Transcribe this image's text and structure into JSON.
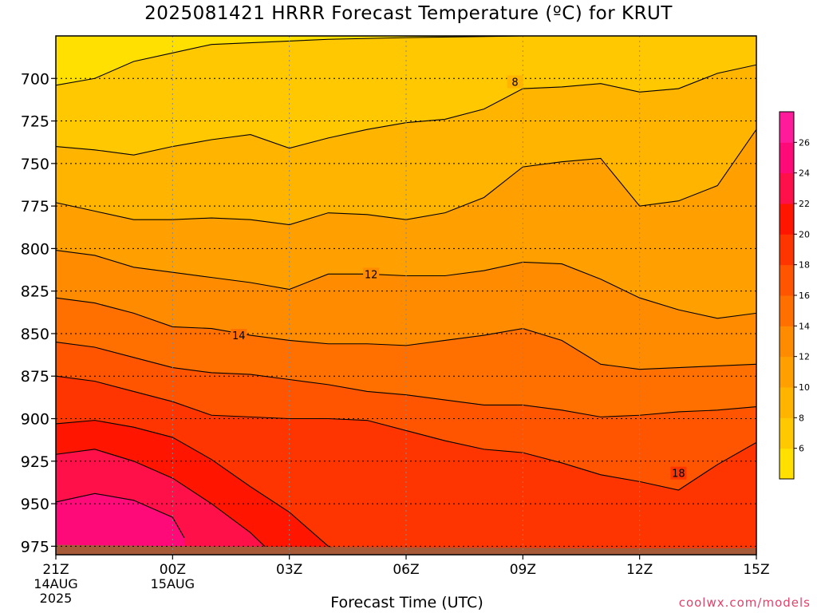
{
  "chart_data": {
    "type": "heatmap",
    "title": "2025081421 HRRR Forecast Temperature (ºC) for KRUT",
    "xlabel": "Forecast Time (UTC)",
    "ylabel": "",
    "x_ticks": [
      {
        "hour": 0,
        "label": "21Z",
        "sub": [
          "14AUG",
          "2025"
        ]
      },
      {
        "hour": 3,
        "label": "00Z",
        "sub": [
          "15AUG"
        ]
      },
      {
        "hour": 6,
        "label": "03Z",
        "sub": []
      },
      {
        "hour": 9,
        "label": "06Z",
        "sub": []
      },
      {
        "hour": 12,
        "label": "09Z",
        "sub": []
      },
      {
        "hour": 15,
        "label": "12Z",
        "sub": []
      },
      {
        "hour": 18,
        "label": "15Z",
        "sub": []
      }
    ],
    "xlim": [
      0,
      18
    ],
    "y_ticks": [
      700,
      725,
      750,
      775,
      800,
      825,
      850,
      875,
      900,
      925,
      950,
      975
    ],
    "ylim": [
      675,
      980
    ],
    "y_inverted": true,
    "colorbar": {
      "levels": [
        4,
        6,
        8,
        10,
        12,
        14,
        16,
        18,
        20,
        22,
        24,
        26,
        28
      ],
      "tick_labels": [
        6,
        8,
        10,
        12,
        14,
        16,
        18,
        20,
        22,
        24,
        26
      ],
      "colors": [
        "#ffe000",
        "#ffc800",
        "#ffb400",
        "#ffa000",
        "#ff8c00",
        "#ff7000",
        "#ff5500",
        "#ff3500",
        "#ff1500",
        "#ff1048",
        "#ff0a78",
        "#ff1c9a"
      ]
    },
    "contours": [
      {
        "level": 6,
        "label": "",
        "points": [
          [
            0,
            704
          ],
          [
            1,
            700
          ],
          [
            2,
            690
          ],
          [
            3,
            685
          ],
          [
            4,
            680
          ],
          [
            5,
            679
          ],
          [
            6,
            678
          ],
          [
            7,
            677
          ],
          [
            9,
            676
          ],
          [
            12,
            675
          ],
          [
            18,
            675
          ]
        ]
      },
      {
        "level": 8,
        "label": "8",
        "points": [
          [
            0,
            740
          ],
          [
            1,
            742
          ],
          [
            2,
            745
          ],
          [
            3,
            740
          ],
          [
            4,
            736
          ],
          [
            5,
            733
          ],
          [
            6,
            741
          ],
          [
            7,
            735
          ],
          [
            8,
            730
          ],
          [
            9,
            726
          ],
          [
            10,
            724
          ],
          [
            11,
            718
          ],
          [
            12,
            706
          ],
          [
            13,
            705
          ],
          [
            14,
            703
          ],
          [
            15,
            708
          ],
          [
            16,
            706
          ],
          [
            17,
            697
          ],
          [
            18,
            692
          ]
        ]
      },
      {
        "level": 10,
        "label": "",
        "points": [
          [
            0,
            773
          ],
          [
            1,
            778
          ],
          [
            2,
            783
          ],
          [
            3,
            783
          ],
          [
            4,
            782
          ],
          [
            5,
            783
          ],
          [
            6,
            786
          ],
          [
            7,
            779
          ],
          [
            8,
            780
          ],
          [
            9,
            783
          ],
          [
            10,
            779
          ],
          [
            11,
            770
          ],
          [
            12,
            752
          ],
          [
            13,
            749
          ],
          [
            14,
            747
          ],
          [
            15,
            775
          ],
          [
            16,
            772
          ],
          [
            17,
            763
          ],
          [
            18,
            730
          ]
        ]
      },
      {
        "level": 12,
        "label": "12",
        "points": [
          [
            0,
            801
          ],
          [
            1,
            804
          ],
          [
            2,
            811
          ],
          [
            3,
            814
          ],
          [
            4,
            817
          ],
          [
            5,
            820
          ],
          [
            6,
            824
          ],
          [
            7,
            815
          ],
          [
            8,
            815
          ],
          [
            9,
            816
          ],
          [
            10,
            816
          ],
          [
            11,
            813
          ],
          [
            12,
            808
          ],
          [
            13,
            809
          ],
          [
            14,
            818
          ],
          [
            15,
            829
          ],
          [
            16,
            836
          ],
          [
            17,
            841
          ],
          [
            18,
            838
          ]
        ]
      },
      {
        "level": 14,
        "label": "14",
        "points": [
          [
            0,
            829
          ],
          [
            1,
            832
          ],
          [
            2,
            838
          ],
          [
            3,
            846
          ],
          [
            4,
            847
          ],
          [
            5,
            851
          ],
          [
            6,
            854
          ],
          [
            7,
            856
          ],
          [
            8,
            856
          ],
          [
            9,
            857
          ],
          [
            10,
            854
          ],
          [
            11,
            851
          ],
          [
            12,
            847
          ],
          [
            13,
            854
          ],
          [
            14,
            868
          ],
          [
            15,
            871
          ],
          [
            16,
            870
          ],
          [
            17,
            869
          ],
          [
            18,
            868
          ]
        ]
      },
      {
        "level": 16,
        "label": "",
        "points": [
          [
            0,
            855
          ],
          [
            1,
            858
          ],
          [
            2,
            864
          ],
          [
            3,
            870
          ],
          [
            4,
            873
          ],
          [
            5,
            874
          ],
          [
            6,
            877
          ],
          [
            7,
            880
          ],
          [
            8,
            884
          ],
          [
            9,
            886
          ],
          [
            10,
            889
          ],
          [
            11,
            892
          ],
          [
            12,
            892
          ],
          [
            13,
            895
          ],
          [
            14,
            899
          ],
          [
            15,
            898
          ],
          [
            16,
            896
          ],
          [
            17,
            895
          ],
          [
            18,
            893
          ]
        ]
      },
      {
        "level": 18,
        "label": "18",
        "points": [
          [
            0,
            875
          ],
          [
            1,
            878
          ],
          [
            2,
            884
          ],
          [
            3,
            890
          ],
          [
            4,
            898
          ],
          [
            5,
            899
          ],
          [
            6,
            900
          ],
          [
            7,
            900
          ],
          [
            8,
            901
          ],
          [
            9,
            907
          ],
          [
            10,
            913
          ],
          [
            11,
            918
          ],
          [
            12,
            920
          ],
          [
            13,
            926
          ],
          [
            14,
            933
          ],
          [
            15,
            937
          ],
          [
            16,
            942
          ],
          [
            17,
            927
          ],
          [
            18,
            914
          ]
        ]
      },
      {
        "level": 20,
        "label": "",
        "points": [
          [
            0,
            903
          ],
          [
            1,
            901
          ],
          [
            2,
            905
          ],
          [
            3,
            911
          ],
          [
            4,
            924
          ],
          [
            5,
            940
          ],
          [
            6,
            955
          ],
          [
            7,
            975
          ],
          [
            7.5,
            979
          ]
        ]
      },
      {
        "level": 22,
        "label": "",
        "points": [
          [
            0,
            921
          ],
          [
            1,
            918
          ],
          [
            2,
            925
          ],
          [
            3,
            935
          ],
          [
            4,
            950
          ],
          [
            5,
            967
          ],
          [
            5.5,
            978
          ]
        ]
      },
      {
        "level": 24,
        "label": "",
        "points": [
          [
            0,
            949
          ],
          [
            1,
            944
          ],
          [
            2,
            948
          ],
          [
            3,
            958
          ],
          [
            3.3,
            970
          ]
        ]
      }
    ],
    "terrain_pressure": 977
  },
  "credit": "coolwx.com/models"
}
